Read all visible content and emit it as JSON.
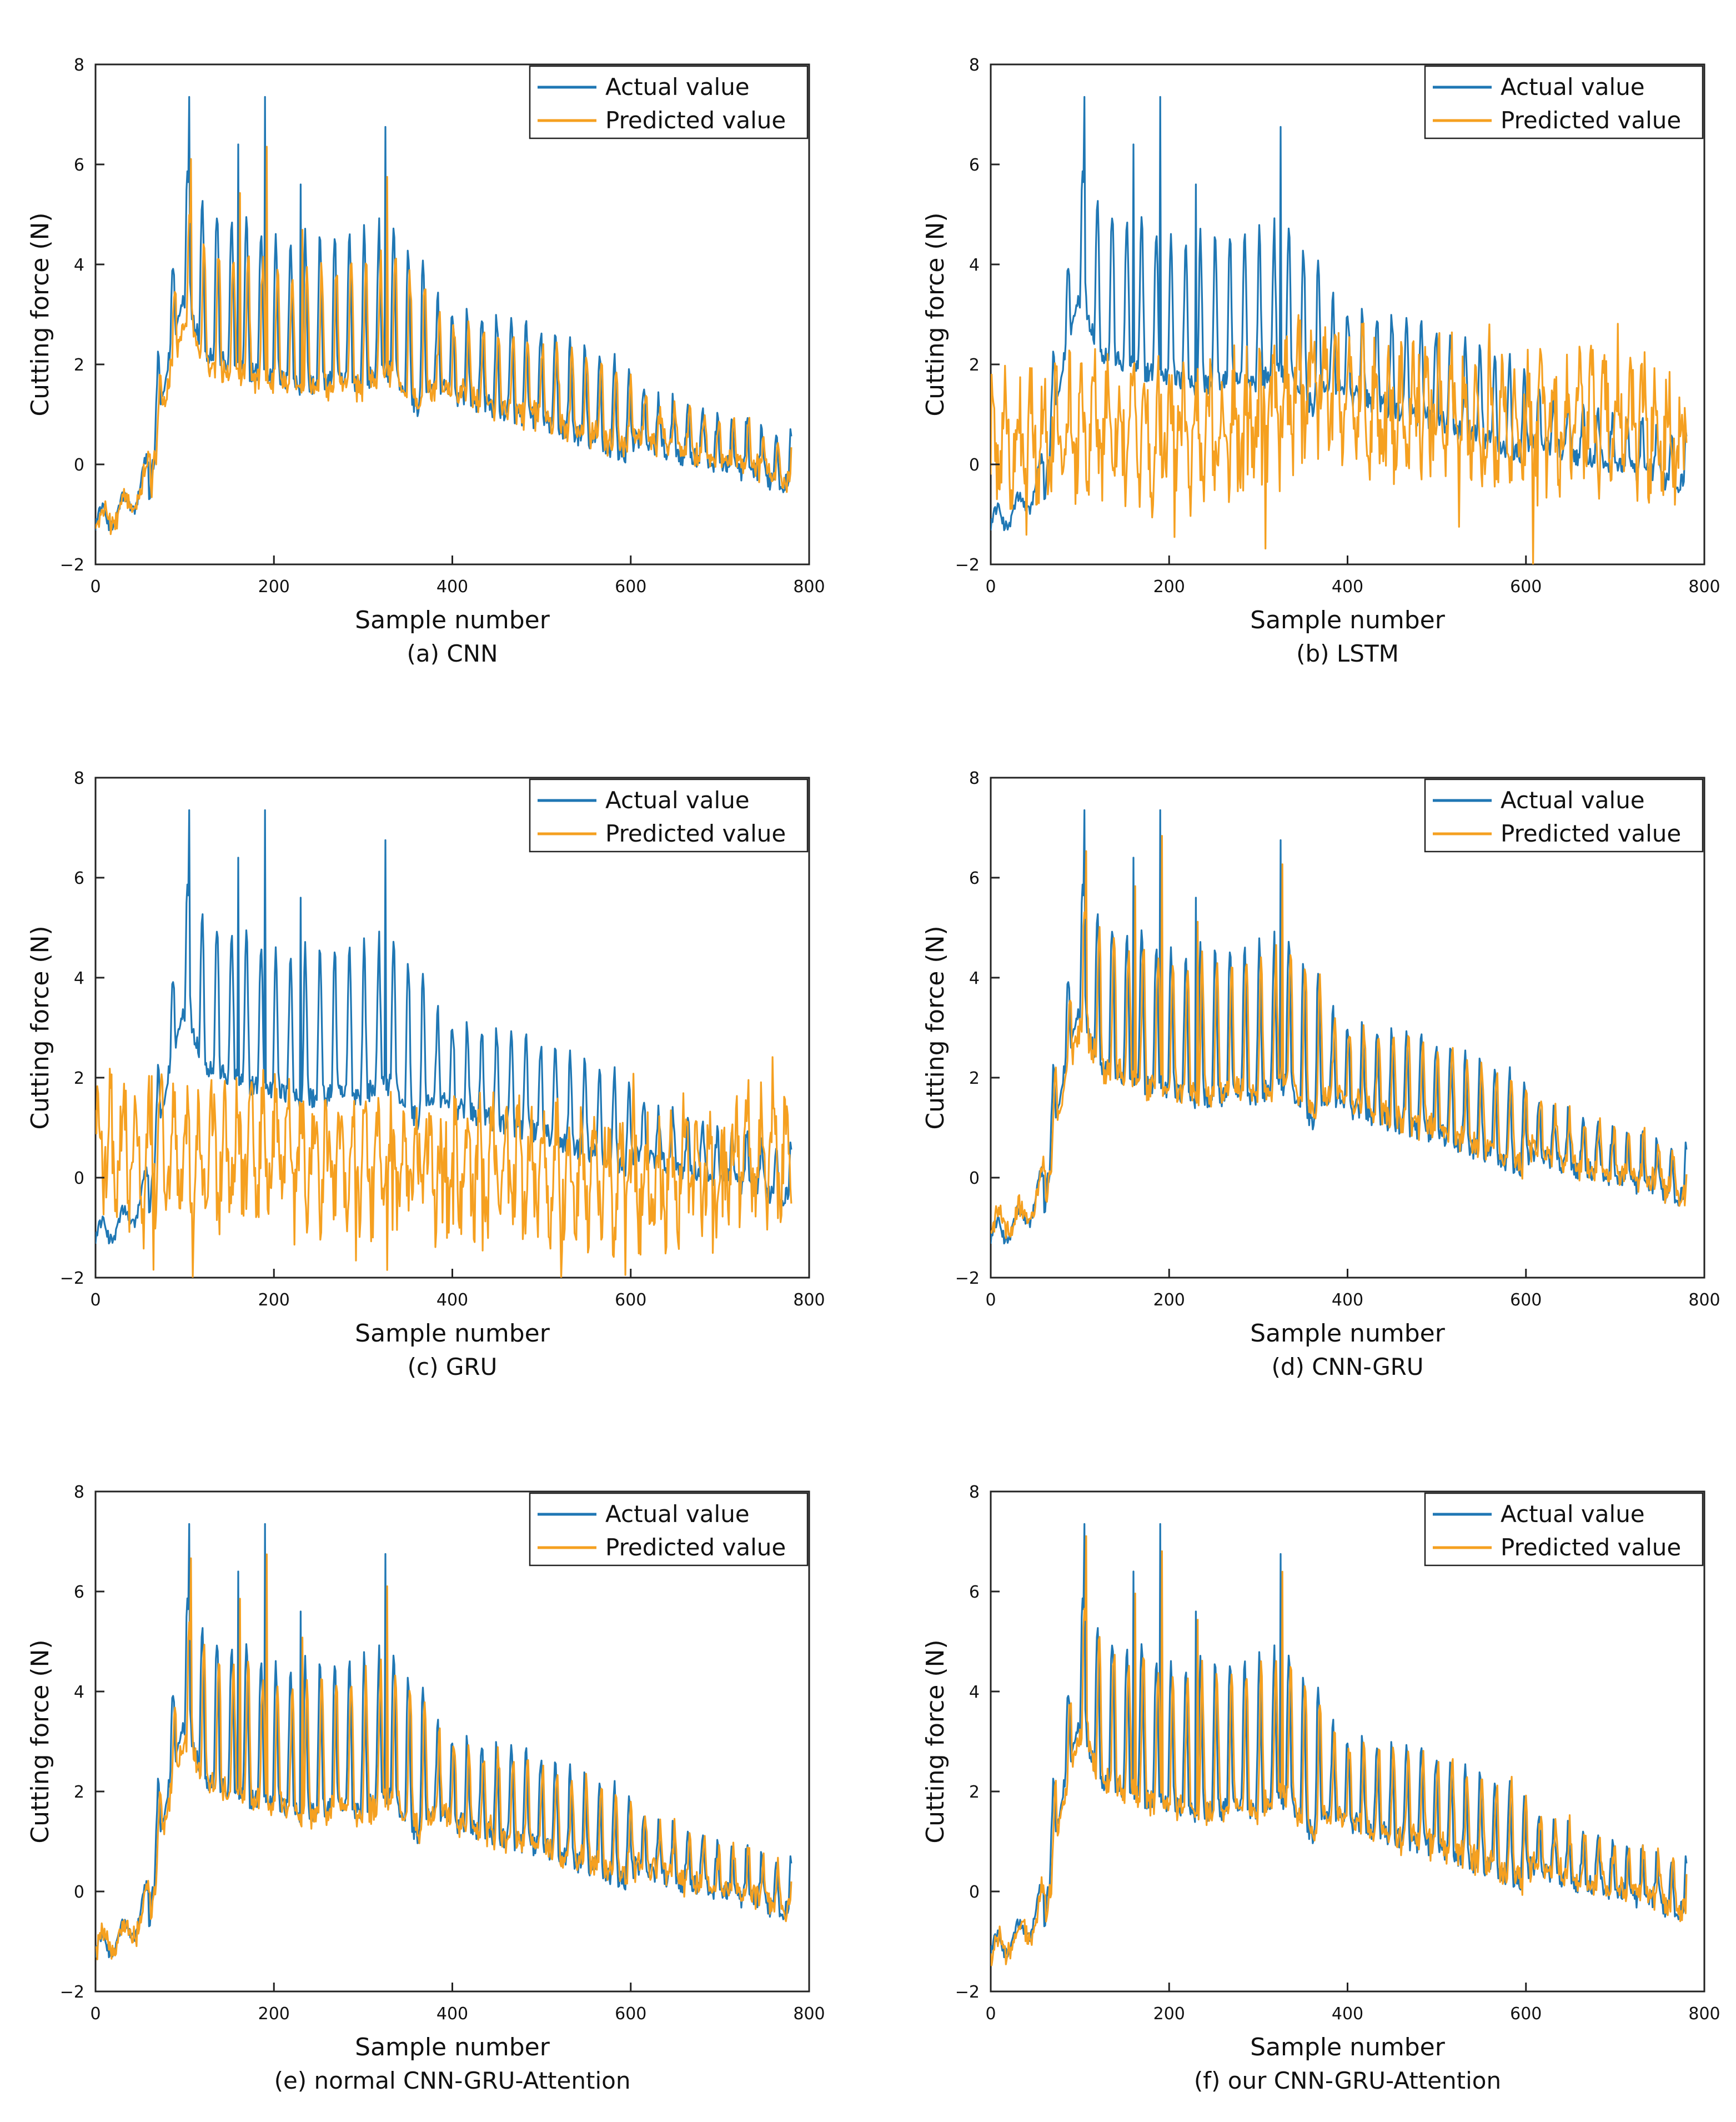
{
  "colors": {
    "actual": "#1f77b4",
    "predicted": "#f5a020",
    "axis": "#222222",
    "text": "#111111"
  },
  "legend": {
    "actual_label": "Actual value",
    "predicted_label": "Predicted value",
    "placement": "top-right"
  },
  "chart_data": [
    {
      "type": "line",
      "id": "a",
      "caption": "(a) CNN",
      "xlabel": "Sample number",
      "ylabel": "Cutting force (N)",
      "xlim": [
        0,
        800
      ],
      "ylim": [
        -2,
        8
      ],
      "xticks": [
        0,
        200,
        400,
        600,
        800
      ],
      "yticks": [
        -2,
        0,
        2,
        4,
        6,
        8
      ],
      "series": [
        {
          "name": "Actual value",
          "x": [
            0,
            40,
            60,
            80,
            105,
            120,
            150,
            190,
            230,
            300,
            330,
            360,
            420,
            500,
            600,
            700,
            780
          ],
          "y": [
            -1.2,
            -0.8,
            0.0,
            2.5,
            4.5,
            3.5,
            3.2,
            3.0,
            2.8,
            2.9,
            3.1,
            2.4,
            2.0,
            1.6,
            0.9,
            0.4,
            0.0
          ]
        },
        {
          "name": "Predicted value",
          "x": [
            0,
            40,
            60,
            80,
            105,
            120,
            150,
            190,
            230,
            300,
            330,
            360,
            420,
            500,
            600,
            700,
            780
          ],
          "y": [
            -1.2,
            -0.8,
            0.0,
            2.2,
            3.8,
            3.0,
            2.8,
            2.7,
            2.5,
            2.6,
            2.8,
            2.2,
            1.9,
            1.5,
            0.9,
            0.4,
            0.0
          ]
        }
      ]
    },
    {
      "type": "line",
      "id": "b",
      "caption": "(b) LSTM",
      "xlabel": "Sample number",
      "ylabel": "Cutting force (N)",
      "xlim": [
        0,
        800
      ],
      "ylim": [
        -2,
        8
      ],
      "xticks": [
        0,
        200,
        400,
        600,
        800
      ],
      "yticks": [
        -2,
        0,
        2,
        4,
        6,
        8
      ],
      "series": [
        {
          "name": "Actual value",
          "x": [
            0,
            40,
            60,
            80,
            105,
            120,
            150,
            190,
            230,
            300,
            330,
            360,
            420,
            500,
            600,
            700,
            780
          ],
          "y": [
            -1.2,
            -0.8,
            0.0,
            2.5,
            4.5,
            3.5,
            3.2,
            3.0,
            2.8,
            2.9,
            3.1,
            2.4,
            2.0,
            1.6,
            0.9,
            0.4,
            0.0
          ]
        },
        {
          "name": "Predicted value",
          "x": [
            0,
            50,
            100,
            200,
            300,
            370,
            400,
            500,
            600,
            700,
            780
          ],
          "y": [
            0.5,
            0.6,
            0.7,
            0.6,
            0.8,
            1.8,
            1.2,
            1.0,
            0.7,
            1.0,
            0.5
          ]
        }
      ]
    },
    {
      "type": "line",
      "id": "c",
      "caption": "(c) GRU",
      "xlabel": "Sample number",
      "ylabel": "Cutting force (N)",
      "xlim": [
        0,
        800
      ],
      "ylim": [
        -2,
        8
      ],
      "xticks": [
        0,
        200,
        400,
        600,
        800
      ],
      "yticks": [
        -2,
        0,
        2,
        4,
        6,
        8
      ],
      "series": [
        {
          "name": "Actual value",
          "x": [
            0,
            40,
            60,
            80,
            105,
            120,
            150,
            190,
            230,
            300,
            330,
            360,
            420,
            500,
            600,
            700,
            780
          ],
          "y": [
            -1.2,
            -0.8,
            0.0,
            2.5,
            4.5,
            3.5,
            3.2,
            3.0,
            2.8,
            2.9,
            3.1,
            2.4,
            2.0,
            1.6,
            0.9,
            0.4,
            0.0
          ]
        },
        {
          "name": "Predicted value",
          "x": [
            0,
            100,
            200,
            300,
            400,
            500,
            600,
            700,
            780
          ],
          "y": [
            0.6,
            0.4,
            0.5,
            0.3,
            0.2,
            0.1,
            0.0,
            0.2,
            0.5
          ]
        }
      ]
    },
    {
      "type": "line",
      "id": "d",
      "caption": "(d) CNN-GRU",
      "xlabel": "Sample number",
      "ylabel": "Cutting force (N)",
      "xlim": [
        0,
        800
      ],
      "ylim": [
        -2,
        8
      ],
      "xticks": [
        0,
        200,
        400,
        600,
        800
      ],
      "yticks": [
        -2,
        0,
        2,
        4,
        6,
        8
      ],
      "series": [
        {
          "name": "Actual value",
          "x": [
            0,
            40,
            60,
            80,
            105,
            120,
            150,
            190,
            230,
            300,
            330,
            360,
            420,
            500,
            600,
            700,
            780
          ],
          "y": [
            -1.2,
            -0.8,
            0.0,
            2.5,
            4.5,
            3.5,
            3.2,
            3.0,
            2.8,
            2.9,
            3.1,
            2.4,
            2.0,
            1.6,
            0.9,
            0.4,
            0.0
          ]
        },
        {
          "name": "Predicted value",
          "x": [
            0,
            40,
            60,
            80,
            105,
            120,
            150,
            190,
            230,
            300,
            330,
            360,
            420,
            500,
            600,
            700,
            780
          ],
          "y": [
            -1.0,
            -0.7,
            0.1,
            2.4,
            4.0,
            3.3,
            3.1,
            2.9,
            2.7,
            2.8,
            3.0,
            2.4,
            2.0,
            1.6,
            0.9,
            0.4,
            0.0
          ]
        }
      ]
    },
    {
      "type": "line",
      "id": "e",
      "caption": "(e) normal CNN-GRU-Attention",
      "xlabel": "Sample number",
      "ylabel": "Cutting force (N)",
      "xlim": [
        0,
        800
      ],
      "ylim": [
        -2,
        8
      ],
      "xticks": [
        0,
        200,
        400,
        600,
        800
      ],
      "yticks": [
        -2,
        0,
        2,
        4,
        6,
        8
      ],
      "series": [
        {
          "name": "Actual value",
          "x": [
            0,
            40,
            60,
            80,
            105,
            120,
            150,
            190,
            230,
            300,
            330,
            360,
            420,
            500,
            600,
            700,
            780
          ],
          "y": [
            -1.2,
            -0.8,
            0.0,
            2.5,
            4.5,
            3.5,
            3.2,
            3.0,
            2.8,
            2.9,
            3.1,
            2.4,
            2.0,
            1.6,
            0.9,
            0.4,
            0.0
          ]
        },
        {
          "name": "Predicted value",
          "x": [
            0,
            40,
            60,
            80,
            105,
            120,
            150,
            190,
            230,
            300,
            330,
            360,
            420,
            500,
            600,
            700,
            780
          ],
          "y": [
            -1.1,
            -0.8,
            0.0,
            2.3,
            4.1,
            3.3,
            3.0,
            2.8,
            2.6,
            2.7,
            2.9,
            2.3,
            1.9,
            1.5,
            0.9,
            0.4,
            0.0
          ]
        }
      ]
    },
    {
      "type": "line",
      "id": "f",
      "caption": "(f) our CNN-GRU-Attention",
      "xlabel": "Sample number",
      "ylabel": "Cutting force (N)",
      "xlim": [
        0,
        800
      ],
      "ylim": [
        -2,
        8
      ],
      "xticks": [
        0,
        200,
        400,
        600,
        800
      ],
      "yticks": [
        -2,
        0,
        2,
        4,
        6,
        8
      ],
      "series": [
        {
          "name": "Actual value",
          "x": [
            0,
            40,
            60,
            80,
            105,
            120,
            150,
            190,
            230,
            300,
            330,
            360,
            420,
            500,
            600,
            700,
            780
          ],
          "y": [
            -1.2,
            -0.8,
            0.0,
            2.5,
            4.5,
            3.5,
            3.2,
            3.0,
            2.8,
            2.9,
            3.1,
            2.4,
            2.0,
            1.6,
            0.9,
            0.4,
            0.0
          ]
        },
        {
          "name": "Predicted value",
          "x": [
            0,
            40,
            60,
            80,
            105,
            120,
            150,
            190,
            230,
            300,
            330,
            360,
            420,
            500,
            600,
            700,
            780
          ],
          "y": [
            -1.2,
            -0.8,
            0.0,
            2.4,
            4.3,
            3.4,
            3.1,
            2.9,
            2.7,
            2.8,
            3.0,
            2.3,
            1.9,
            1.6,
            0.9,
            0.4,
            0.0
          ]
        }
      ]
    }
  ]
}
